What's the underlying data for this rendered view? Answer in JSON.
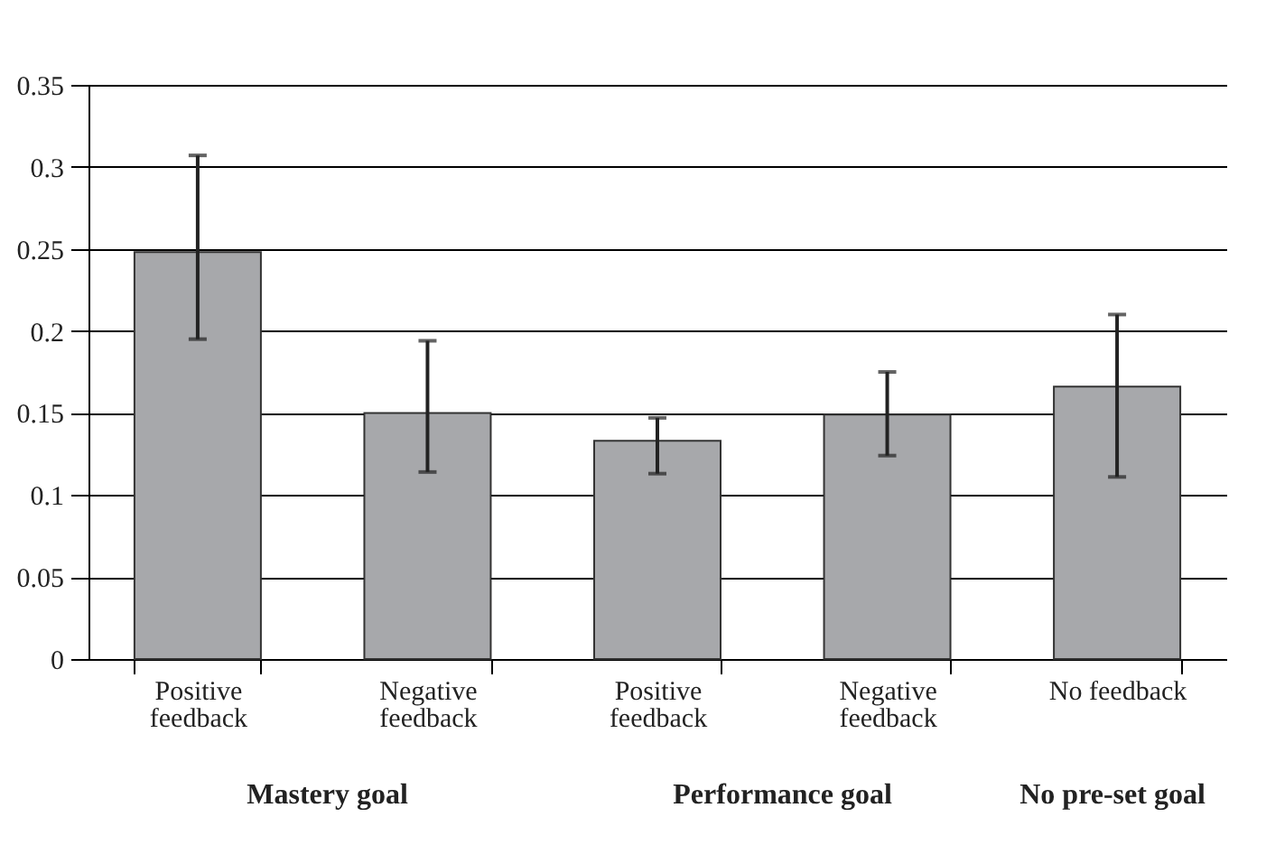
{
  "chart_data": {
    "type": "bar",
    "categories": [
      "Positive feedback",
      "Negative feedback",
      "Positive feedback",
      "Negative feedback",
      "No feedback"
    ],
    "values": [
      0.248,
      0.15,
      0.133,
      0.149,
      0.166
    ],
    "errors": [
      [
        0.195,
        0.307
      ],
      [
        0.114,
        0.194
      ],
      [
        0.113,
        0.147
      ],
      [
        0.124,
        0.175
      ],
      [
        0.111,
        0.21
      ]
    ],
    "color": "#a7a8ab",
    "ylim": [
      0,
      0.35
    ],
    "yticks": [
      0,
      0.05,
      0.1,
      0.15,
      0.2,
      0.25,
      0.3,
      0.35
    ],
    "grid": "y",
    "annotations": [
      "Mastery goal",
      "Performance goal",
      "No pre-set goal"
    ]
  }
}
